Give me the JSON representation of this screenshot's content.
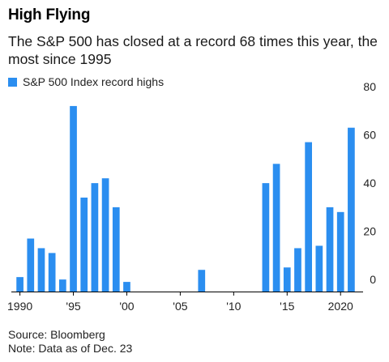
{
  "title": "High Flying",
  "subtitle": "The S&P 500 has closed at a record 68 times this year, the most since 1995",
  "legend": {
    "label": "S&P 500 Index record highs"
  },
  "colors": {
    "bar": "#2b8ef0",
    "axis": "#000000",
    "grid": "#d0d0d0"
  },
  "footer": {
    "source": "Source: Bloomberg",
    "note": "Note: Data as of Dec. 23"
  },
  "chart_data": {
    "type": "bar",
    "series_name": "S&P 500 Index record highs",
    "x": [
      1990,
      1991,
      1992,
      1993,
      1994,
      1995,
      1996,
      1997,
      1998,
      1999,
      2000,
      2001,
      2002,
      2003,
      2004,
      2005,
      2006,
      2007,
      2008,
      2009,
      2010,
      2011,
      2012,
      2013,
      2014,
      2015,
      2016,
      2017,
      2018,
      2019,
      2020,
      2021
    ],
    "values": [
      6,
      22,
      18,
      16,
      5,
      77,
      39,
      45,
      47,
      35,
      4,
      0,
      0,
      0,
      0,
      0,
      0,
      9,
      0,
      0,
      0,
      0,
      0,
      45,
      53,
      10,
      18,
      62,
      19,
      35,
      33,
      68
    ],
    "ylim": [
      0,
      80
    ],
    "yticks": [
      0,
      20,
      40,
      60,
      80
    ],
    "xticks": [
      {
        "x": 1990,
        "label": "1990"
      },
      {
        "x": 1995,
        "label": "'95"
      },
      {
        "x": 2000,
        "label": "'00"
      },
      {
        "x": 2005,
        "label": "'05"
      },
      {
        "x": 2010,
        "label": "'10"
      },
      {
        "x": 2015,
        "label": "'15"
      },
      {
        "x": 2020,
        "label": "2020"
      }
    ],
    "ytick_position": "right",
    "grid": false,
    "legend_position": "top-left"
  }
}
